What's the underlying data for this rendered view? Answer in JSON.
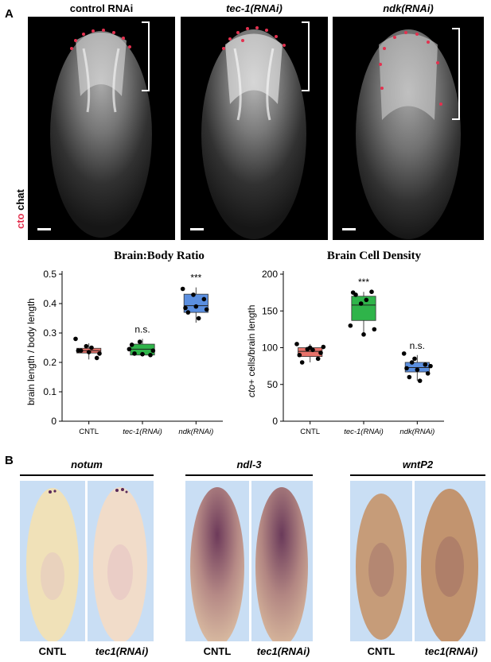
{
  "panel_a": {
    "letter": "A",
    "side_label_red": "cto",
    "side_label_white": "chat",
    "columns": [
      {
        "title": "control RNAi",
        "italic": false
      },
      {
        "title": "tec-1(RNAi)",
        "italic": true
      },
      {
        "title": "ndk(RNAi)",
        "italic": true
      }
    ]
  },
  "panel_b": {
    "letter": "B",
    "groups": [
      {
        "title": "notum",
        "labels": [
          "CNTL",
          "tec1(RNAi)"
        ]
      },
      {
        "title": "ndl-3",
        "labels": [
          "CNTL",
          "tec1(RNAi)"
        ]
      },
      {
        "title": "wntP2",
        "labels": [
          "CNTL",
          "tec1(RNAi)"
        ]
      }
    ]
  },
  "chart_data": [
    {
      "type": "box",
      "title": "Brain:Body Ratio",
      "ylabel": "brain length / body length",
      "categories": [
        "CNTL",
        "tec-1(RNAi)",
        "ndk(RNAi)"
      ],
      "ylim": [
        0,
        0.5
      ],
      "yticks": [
        "0",
        "0.1",
        "0.2",
        "0.3",
        "0.4",
        "0.5"
      ],
      "ytick_values": [
        0,
        0.1,
        0.2,
        0.3,
        0.4,
        0.5
      ],
      "colors": [
        "#e8726a",
        "#2fb44a",
        "#5b8fe0"
      ],
      "annotations": [
        "",
        "n.s.",
        "***"
      ],
      "boxes": [
        {
          "q1": 0.232,
          "median": 0.24,
          "q3": 0.248,
          "whisker_low": 0.21,
          "whisker_high": 0.265
        },
        {
          "q1": 0.225,
          "median": 0.245,
          "q3": 0.262,
          "whisker_low": 0.22,
          "whisker_high": 0.28
        },
        {
          "q1": 0.37,
          "median": 0.393,
          "q3": 0.432,
          "whisker_low": 0.335,
          "whisker_high": 0.455
        }
      ],
      "points": [
        [
          0.28,
          0.255,
          0.215,
          0.24,
          0.235,
          0.23,
          0.24,
          0.25
        ],
        [
          0.245,
          0.27,
          0.225,
          0.26,
          0.228,
          0.24,
          0.23
        ],
        [
          0.45,
          0.43,
          0.415,
          0.385,
          0.39,
          0.38,
          0.37,
          0.35
        ]
      ]
    },
    {
      "type": "box",
      "title": "Brain Cell Density",
      "ylabel_italic": "cto",
      "ylabel": "+ cells/brain length",
      "categories": [
        "CNTL",
        "tec-1(RNAi)",
        "ndk(RNAi)"
      ],
      "ylim": [
        0,
        200
      ],
      "yticks": [
        "0",
        "50",
        "100",
        "150",
        "200"
      ],
      "ytick_values": [
        0,
        50,
        100,
        150,
        200
      ],
      "colors": [
        "#e8726a",
        "#2fb44a",
        "#5b8fe0"
      ],
      "annotations": [
        "",
        "***",
        "n.s."
      ],
      "boxes": [
        {
          "q1": 88,
          "median": 95,
          "q3": 100,
          "whisker_low": 80,
          "whisker_high": 105
        },
        {
          "q1": 137,
          "median": 158,
          "q3": 170,
          "whisker_low": 117,
          "whisker_high": 176
        },
        {
          "q1": 67,
          "median": 73,
          "q3": 80,
          "whisker_low": 55,
          "whisker_high": 90
        }
      ],
      "points": [
        [
          105,
          98,
          85,
          90,
          100,
          93,
          80,
          97,
          101
        ],
        [
          130,
          160,
          176,
          175,
          118,
          125,
          172,
          165
        ],
        [
          92,
          85,
          77,
          72,
          70,
          65,
          60,
          55,
          75,
          80
        ]
      ]
    }
  ]
}
